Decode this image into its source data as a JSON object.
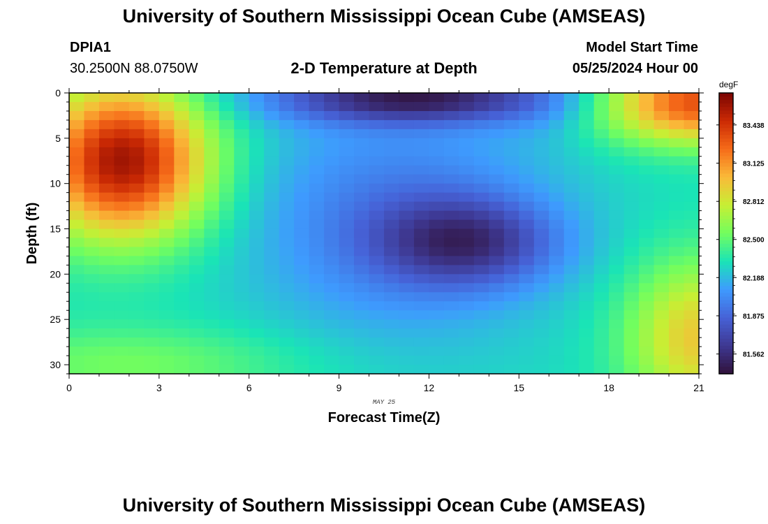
{
  "header": {
    "title_top": "University of Southern Mississippi Ocean Cube (AMSEAS)",
    "title_bottom": "University of Southern Mississippi Ocean Cube (AMSEAS)",
    "station_id": "DPIA1",
    "coordinates": "30.2500N  88.0750W",
    "plot_title": "2-D Temperature at Depth",
    "model_label": "Model Start Time",
    "model_time": "05/25/2024 Hour 00"
  },
  "chart_data": {
    "type": "heatmap",
    "title": "2-D Temperature at Depth",
    "xlabel": "Forecast Time(Z)",
    "ylabel": "Depth (ft)",
    "x_ticks": [
      0,
      3,
      6,
      9,
      12,
      15,
      18,
      21
    ],
    "y_ticks": [
      0,
      5,
      10,
      15,
      20,
      25,
      30
    ],
    "xlim": [
      0,
      21
    ],
    "ylim": [
      0,
      31
    ],
    "date_label": "MAY 25",
    "colorbar": {
      "unit": "degF",
      "ticks": [
        83.438,
        83.125,
        82.812,
        82.5,
        82.188,
        81.875,
        81.562
      ],
      "tick_labels": [
        "83.438",
        "83.125",
        "82.812",
        "82.500",
        "82.188",
        "81.875",
        "81.562"
      ],
      "range": [
        81.4,
        83.7
      ],
      "colors": [
        "#30123b",
        "#3e3892",
        "#4662d7",
        "#3e9bfe",
        "#1ae4b6",
        "#72fe5e",
        "#c7ef34",
        "#faba39",
        "#f66b19",
        "#cb2a04",
        "#7a0403"
      ]
    },
    "field_description": {
      "warm_core_upper_left": {
        "time": [
          0,
          4.5
        ],
        "depth": [
          0,
          16
        ],
        "max_degF": 83.65
      },
      "cold_surface_band": {
        "time": [
          10,
          14
        ],
        "depth": [
          0,
          2
        ],
        "min_degF": 81.5
      },
      "cold_core_mid": {
        "time": [
          12,
          14.5
        ],
        "depth": [
          13,
          19
        ],
        "min_degF": 81.75
      },
      "warm_upper_right": {
        "time": [
          18,
          21
        ],
        "depth": [
          0,
          5
        ],
        "max_degF": 83.4
      },
      "warm_bottom_right": {
        "time": [
          19.5,
          21
        ],
        "depth": [
          20,
          31
        ],
        "max_degF": 83.0
      }
    }
  }
}
